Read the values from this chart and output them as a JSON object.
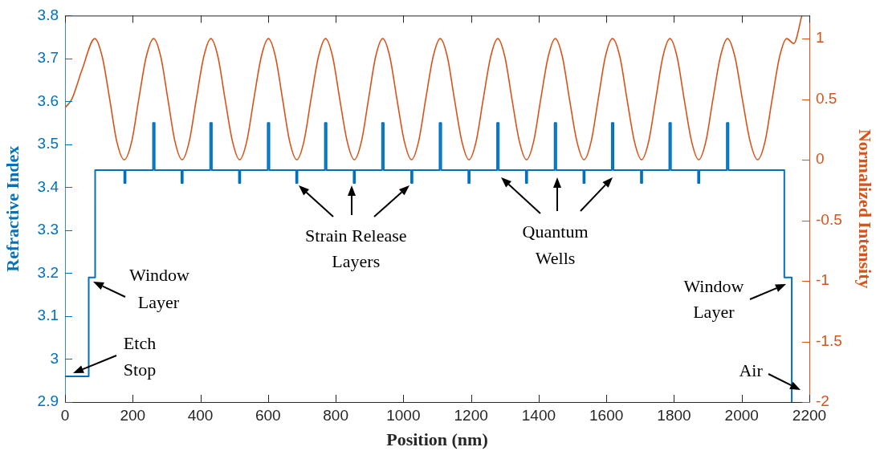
{
  "chart_data": {
    "type": "step",
    "xlabel": "Position (nm)",
    "ylabel": "Refractive Index",
    "y2label": "Normalized Intensity",
    "xlim": [
      0,
      2200
    ],
    "xticks": [
      0,
      200,
      400,
      600,
      800,
      1000,
      1200,
      1400,
      1600,
      1800,
      2000,
      2200
    ],
    "ylim": [
      2.9,
      3.8
    ],
    "yticks": [
      2.9,
      3,
      3.1,
      3.2,
      3.3,
      3.4,
      3.5,
      3.6,
      3.7,
      3.8
    ],
    "y2lim": [
      -2,
      1.19
    ],
    "y2ticks": [
      -2,
      -1.5,
      -1,
      -0.5,
      0,
      0.5,
      1
    ],
    "marker": "none",
    "series": [
      {
        "type": "step",
        "color": "#0072bd",
        "x": [
          0,
          70,
          89,
          175,
          179,
          260,
          265,
          344,
          348,
          429,
          434,
          514,
          518,
          599,
          604,
          683,
          687,
          768,
          773,
          853,
          857,
          937,
          942,
          1023,
          1027,
          1107,
          1112,
          1192,
          1196,
          1277,
          1282,
          1362,
          1366,
          1447,
          1452,
          1532,
          1536,
          1616,
          1621,
          1702,
          1706,
          1786,
          1791,
          1871,
          1875,
          1956,
          1961,
          2126,
          2148
        ],
        "values": [
          2.96,
          3.19,
          3.44,
          3.41,
          3.44,
          3.55,
          3.44,
          3.41,
          3.44,
          3.55,
          3.44,
          3.41,
          3.44,
          3.55,
          3.44,
          3.41,
          3.44,
          3.55,
          3.44,
          3.41,
          3.44,
          3.55,
          3.44,
          3.41,
          3.44,
          3.55,
          3.44,
          3.41,
          3.44,
          3.55,
          3.44,
          3.41,
          3.44,
          3.55,
          3.44,
          3.41,
          3.44,
          3.55,
          3.44,
          3.41,
          3.44,
          3.55,
          3.44,
          3.41,
          3.44,
          3.55,
          3.44,
          3.19,
          2.9
        ]
      },
      {
        "type": "line",
        "axis": "y2",
        "color": "#d95319",
        "x": [
          0,
          20,
          50,
          88,
          110,
          132,
          153,
          175,
          197,
          218,
          240,
          262,
          283,
          304,
          325,
          346,
          367,
          388,
          410,
          431,
          452,
          473,
          495,
          516,
          537,
          558,
          580,
          601,
          622,
          643,
          664,
          685,
          706,
          727,
          749,
          770,
          791,
          812,
          834,
          855,
          876,
          897,
          918,
          939,
          960,
          981,
          1003,
          1024,
          1045,
          1066,
          1088,
          1109,
          1130,
          1151,
          1173,
          1194,
          1215,
          1236,
          1258,
          1279,
          1300,
          1321,
          1343,
          1364,
          1385,
          1406,
          1428,
          1449,
          1470,
          1491,
          1513,
          1534,
          1555,
          1576,
          1597,
          1618,
          1640,
          1661,
          1683,
          1704,
          1725,
          1746,
          1767,
          1788,
          1809,
          1830,
          1852,
          1873,
          1894,
          1915,
          1937,
          1958,
          1980,
          2002,
          2025,
          2047,
          2069,
          2090,
          2112,
          2133,
          2154,
          2178
        ],
        "values": [
          0.43,
          0.5,
          0.74,
          1,
          0.85,
          0.5,
          0.15,
          0,
          0.15,
          0.5,
          0.85,
          1,
          0.85,
          0.5,
          0.15,
          0,
          0.15,
          0.5,
          0.85,
          1,
          0.85,
          0.5,
          0.15,
          0,
          0.15,
          0.5,
          0.85,
          1,
          0.85,
          0.5,
          0.15,
          0,
          0.15,
          0.5,
          0.85,
          1,
          0.85,
          0.5,
          0.15,
          0,
          0.15,
          0.5,
          0.85,
          1,
          0.85,
          0.5,
          0.15,
          0,
          0.15,
          0.5,
          0.85,
          1,
          0.85,
          0.5,
          0.15,
          0,
          0.15,
          0.5,
          0.85,
          1,
          0.85,
          0.5,
          0.15,
          0,
          0.15,
          0.5,
          0.85,
          1,
          0.85,
          0.5,
          0.15,
          0,
          0.15,
          0.5,
          0.85,
          1,
          0.85,
          0.5,
          0.15,
          0,
          0.15,
          0.5,
          0.85,
          1,
          0.85,
          0.5,
          0.15,
          0,
          0.15,
          0.5,
          0.85,
          1,
          0.85,
          0.5,
          0.15,
          0,
          0.15,
          0.5,
          0.85,
          1,
          0.96,
          1.19
        ]
      }
    ],
    "annotations": [
      {
        "text": "Strain Release\nLayers",
        "x": 855,
        "y": 3.41
      },
      {
        "text": "Quantum\nWells",
        "x": 1449,
        "y": 3.44
      },
      {
        "text": "Window\nLayer",
        "x": 70,
        "y": 3.19
      },
      "Etch\nStop",
      {
        "text": "Window\nLayer",
        "x": 2126,
        "y": 3.19
      },
      {
        "text": "Air",
        "x": 2148,
        "y": 2.9
      }
    ]
  }
}
